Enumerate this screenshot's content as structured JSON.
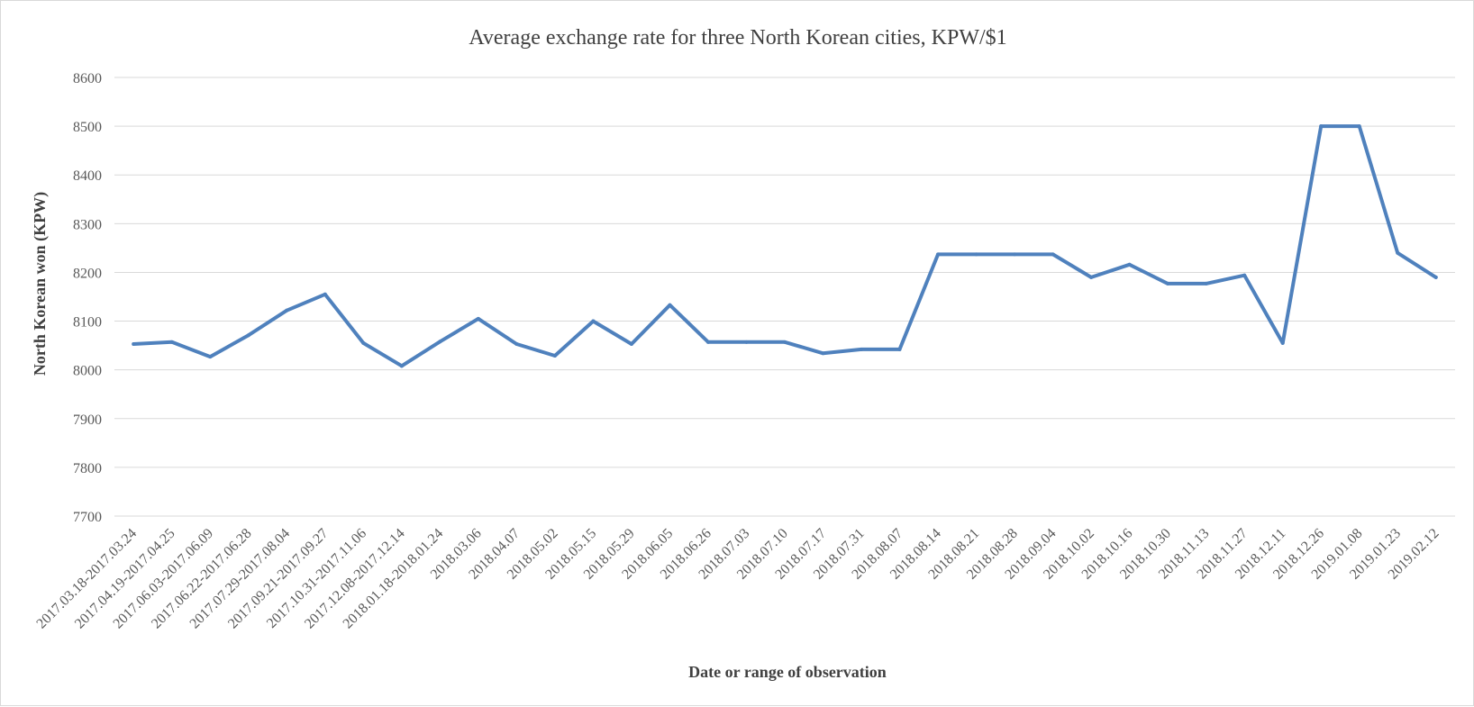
{
  "chart_data": {
    "type": "line",
    "title": "Average exchange rate for three North Korean cities, KPW/$1",
    "xlabel": "Date or range of observation",
    "ylabel": "North Korean won (KPW)",
    "ylim": [
      7700,
      8600
    ],
    "yticks": [
      7700,
      7800,
      7900,
      8000,
      8100,
      8200,
      8300,
      8400,
      8500,
      8600
    ],
    "grid": true,
    "legend": "none",
    "categories": [
      "2017.03.18-2017.03.24",
      "2017.04.19-2017.04.25",
      "2017.06.03-2017.06.09",
      "2017.06.22-2017.06.28",
      "2017.07.29-2017.08.04",
      "2017.09.21-2017.09.27",
      "2017.10.31-2017.11.06",
      "2017.12.08-2017.12.14",
      "2018.01.18-2018.01.24",
      "2018.03.06",
      "2018.04.07",
      "2018.05.02",
      "2018.05.15",
      "2018.05.29",
      "2018.06.05",
      "2018.06.26",
      "2018.07.03",
      "2018.07.10",
      "2018.07.17",
      "2018.07.31",
      "2018.08.07",
      "2018.08.14",
      "2018.08.21",
      "2018.08.28",
      "2018.09.04",
      "2018.10.02",
      "2018.10.16",
      "2018.10.30",
      "2018.11.13",
      "2018.11.27",
      "2018.12.11",
      "2018.12.26",
      "2019.01.08",
      "2019.01.23",
      "2019.02.12"
    ],
    "series": [
      {
        "color": "#4f81bd",
        "values": [
          8053,
          8057,
          8027,
          8071,
          8122,
          8155,
          8055,
          8008,
          8058,
          8105,
          8053,
          8029,
          8100,
          8053,
          8133,
          8057,
          8057,
          8057,
          8034,
          8042,
          8042,
          8237,
          8237,
          8237,
          8237,
          8190,
          8216,
          8177,
          8177,
          8194,
          8055,
          8500,
          8500,
          8240,
          8190
        ]
      }
    ]
  }
}
